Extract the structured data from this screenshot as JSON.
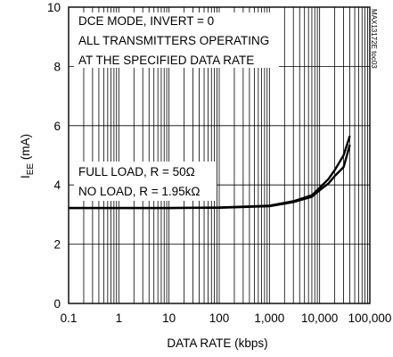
{
  "chart_data": {
    "type": "line",
    "x_scale": "log",
    "xlabel": "DATA RATE (kbps)",
    "ylabel_main": "I",
    "ylabel_sub": "EE",
    "ylabel_unit": " (mA)",
    "xlim": [
      0.1,
      100000
    ],
    "ylim": [
      0,
      10
    ],
    "x_ticks": [
      0.1,
      1,
      10,
      100,
      1000,
      10000,
      100000
    ],
    "x_tick_labels": [
      "0.1",
      "1",
      "10",
      "100",
      "1,000",
      "10,000",
      "100,000"
    ],
    "y_ticks": [
      0,
      2,
      4,
      6,
      8,
      10
    ],
    "y_tick_labels": [
      "0",
      "2",
      "4",
      "6",
      "8",
      "10"
    ],
    "grid": true,
    "annotations": {
      "conditions": [
        "DCE MODE, INVERT = 0",
        "ALL TRANSMITTERS OPERATING",
        "AT THE SPECIFIED DATA RATE"
      ],
      "full_load": "FULL LOAD, R = 50Ω",
      "no_load": "NO LOAD, R = 1.95kΩ",
      "code": "MAX13172E toc03"
    },
    "series": [
      {
        "x": [
          0.1,
          1,
          10,
          100,
          1000,
          3000,
          7000,
          10000,
          15000,
          20000,
          30000,
          40000
        ],
        "y": [
          3.22,
          3.22,
          3.22,
          3.24,
          3.3,
          3.45,
          3.65,
          3.9,
          4.2,
          4.5,
          5.0,
          5.65
        ]
      },
      {
        "x": [
          0.1,
          1,
          10,
          100,
          1000,
          3000,
          7000,
          10000,
          15000,
          20000,
          30000,
          40000
        ],
        "y": [
          3.22,
          3.22,
          3.22,
          3.23,
          3.28,
          3.42,
          3.6,
          3.82,
          4.05,
          4.3,
          4.6,
          5.35
        ]
      }
    ]
  }
}
